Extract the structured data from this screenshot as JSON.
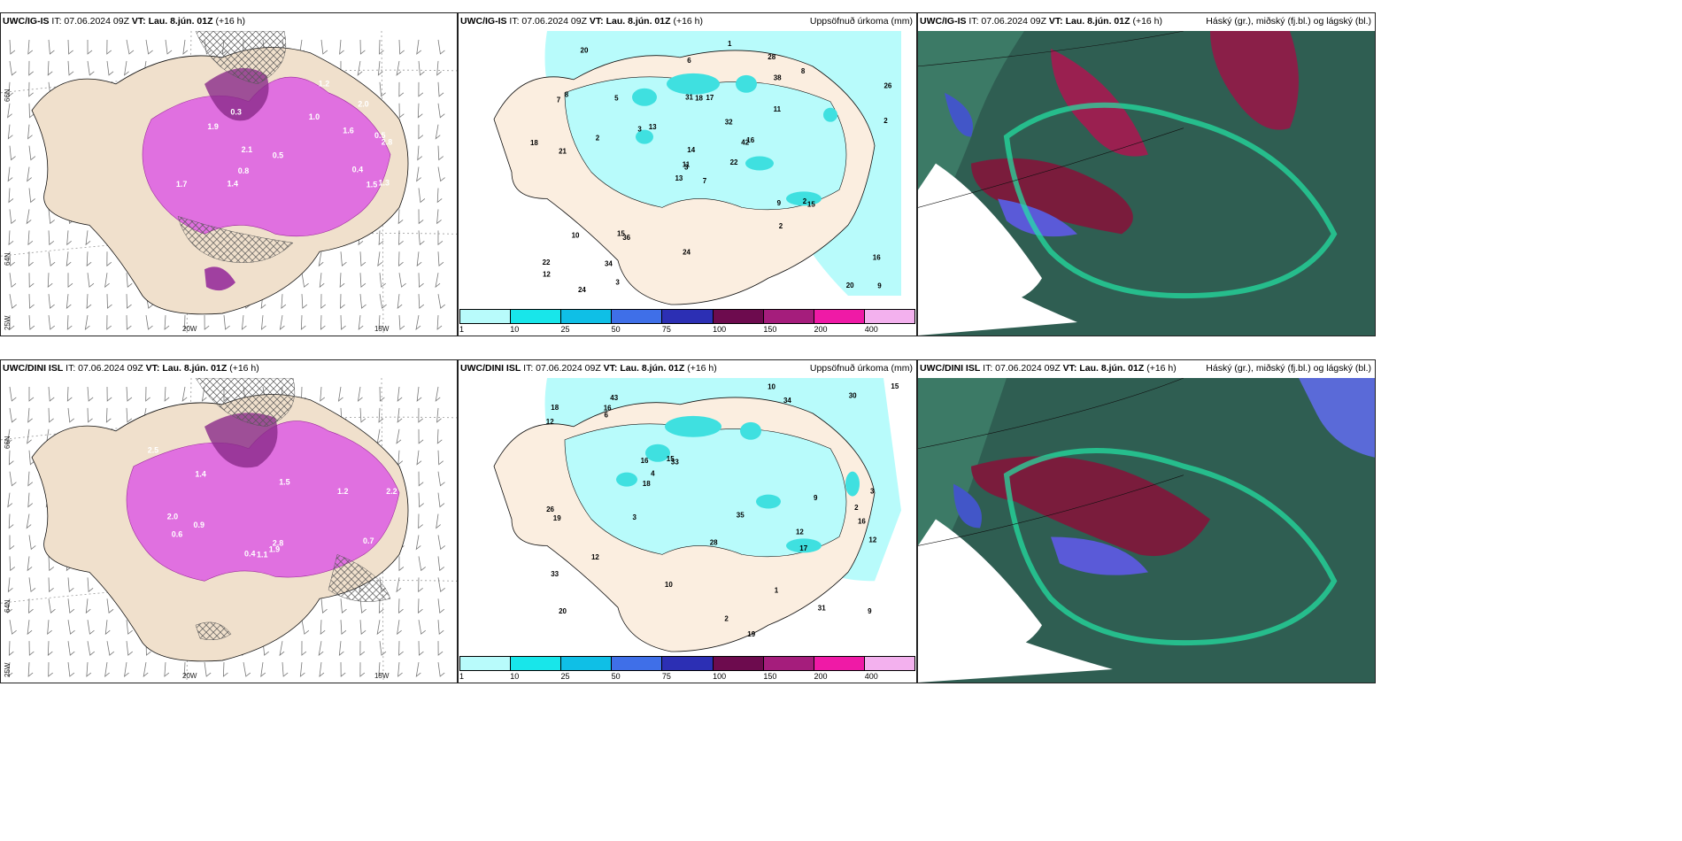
{
  "rows": [
    {
      "panels": [
        {
          "model": "UWC/IG-IS",
          "it": "IT: 07.06.2024 09Z",
          "vt": "VT: Lau. 8.jún. 01Z",
          "lead": "(+16 h)",
          "right": ""
        },
        {
          "model": "UWC/IG-IS",
          "it": "IT: 07.06.2024 09Z",
          "vt": "VT: Lau. 8.jún. 01Z",
          "lead": "(+16 h)",
          "right": "Uppsöfnuð úrkoma (mm)"
        },
        {
          "model": "UWC/IG-IS",
          "it": "IT: 07.06.2024 09Z",
          "vt": "VT: Lau. 8.jún. 01Z",
          "lead": "(+16 h)",
          "right": "Háský (gr.), miðský (fj.bl.) og lágský (bl.)"
        }
      ],
      "axis": {
        "lat1": "66N",
        "lat2": "64N",
        "lon1": "25W",
        "lon2": "20W",
        "lon3": "15W"
      }
    },
    {
      "panels": [
        {
          "model": "UWC/DINI ISL",
          "it": "IT: 07.06.2024 09Z",
          "vt": "VT: Lau. 8.jún. 01Z",
          "lead": "(+16 h)",
          "right": ""
        },
        {
          "model": "UWC/DINI ISL",
          "it": "IT: 07.06.2024 09Z",
          "vt": "VT: Lau. 8.jún. 01Z",
          "lead": "(+16 h)",
          "right": "Uppsöfnuð úrkoma (mm)"
        },
        {
          "model": "UWC/DINI ISL",
          "it": "IT: 07.06.2024 09Z",
          "vt": "VT: Lau. 8.jún. 01Z",
          "lead": "(+16 h)",
          "right": "Háský (gr.), miðský (fj.bl.) og lágský (bl.)"
        }
      ],
      "axis": {
        "lat1": "66N",
        "lat2": "64N",
        "lon1": "25W",
        "lon2": "20W",
        "lon3": "15W"
      }
    }
  ],
  "colorbar": {
    "ticks": [
      "1",
      "10",
      "25",
      "50",
      "75",
      "100",
      "150",
      "200",
      "400"
    ],
    "colors": [
      "#b8fbfb",
      "#18e6ea",
      "#0fbfe6",
      "#3f6fe8",
      "#2c2fb4",
      "#6d0b4e",
      "#a51d7c",
      "#ef1aa6",
      "#f3b1ee"
    ]
  },
  "precip_labels_top": [
    "7",
    "7",
    "3",
    "22",
    "42",
    "36",
    "28",
    "17",
    "38",
    "22",
    "20",
    "9",
    "21",
    "26",
    "13",
    "11",
    "24",
    "31",
    "32",
    "10",
    "13",
    "12",
    "34",
    "18",
    "16",
    "15",
    "8",
    "6",
    "18",
    "9",
    "2",
    "11",
    "24",
    "14",
    "5",
    "8",
    "15",
    "20",
    "16",
    "2",
    "1",
    "3",
    "2",
    "2",
    "3"
  ],
  "precip_labels_bottom": [
    "12",
    "16",
    "20",
    "43",
    "33",
    "31",
    "33",
    "34",
    "16",
    "19",
    "12",
    "26",
    "18",
    "9",
    "10",
    "3",
    "28",
    "35",
    "15",
    "12",
    "15",
    "30",
    "18",
    "12",
    "10",
    "16",
    "17",
    "19",
    "6",
    "9",
    "2",
    "1",
    "4",
    "3",
    "2"
  ],
  "wind_labels_top": [
    "0.3",
    "0.5",
    "1.0",
    "2.8",
    "2.1",
    "1.3",
    "0.8",
    "1.2",
    "1.5",
    "2.0",
    "1.9",
    "0.4",
    "1.6",
    "1.4",
    "1.7",
    "0.5"
  ],
  "wind_labels_bottom": [
    "0.4",
    "2.8",
    "1.5",
    "2.5",
    "2.2",
    "0.6",
    "1.9",
    "2.0",
    "1.2",
    "1.4",
    "0.9",
    "0.7",
    "1.1"
  ]
}
